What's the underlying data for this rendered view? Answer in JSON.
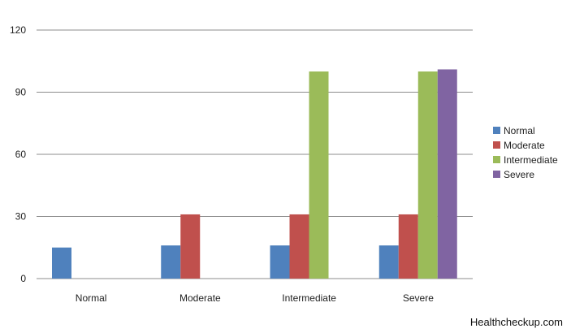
{
  "chart_data": {
    "type": "bar",
    "categories": [
      "Normal",
      "Moderate",
      "Intermediate",
      "Severe"
    ],
    "series": [
      {
        "name": "Normal",
        "color": "#4f81bd",
        "values": [
          15,
          16,
          16,
          16
        ]
      },
      {
        "name": "Moderate",
        "color": "#c0504d",
        "values": [
          0,
          31,
          31,
          31
        ]
      },
      {
        "name": "Intermediate",
        "color": "#9bbb59",
        "values": [
          0,
          0,
          100,
          100
        ]
      },
      {
        "name": "Severe",
        "color": "#8064a2",
        "values": [
          0,
          0,
          0,
          101
        ]
      }
    ],
    "ylim": [
      0,
      120
    ],
    "yticks": [
      0,
      30,
      60,
      90,
      120
    ],
    "grid": true,
    "legend": "right"
  },
  "watermark": "Healthcheckup.com"
}
